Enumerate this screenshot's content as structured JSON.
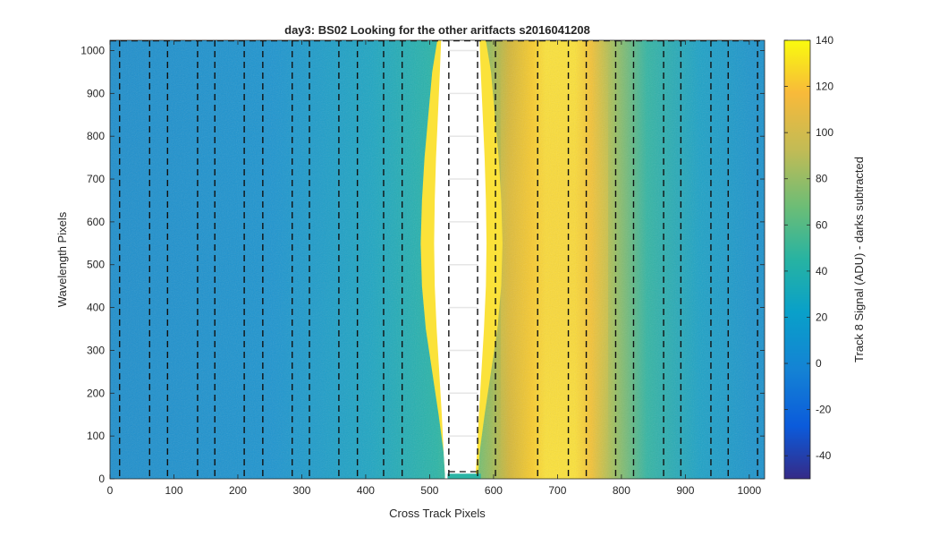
{
  "chart_data": {
    "type": "heatmap",
    "title": "day3: BS02  Looking for the other aritfacts  s2016041208",
    "xlabel": "Cross Track Pixels",
    "ylabel": "Wavelength Pixels",
    "xlim": [
      0,
      1024
    ],
    "ylim": [
      0,
      1024
    ],
    "x_ticks": [
      0,
      100,
      200,
      300,
      400,
      500,
      600,
      700,
      800,
      900,
      1000
    ],
    "y_ticks": [
      0,
      100,
      200,
      300,
      400,
      500,
      600,
      700,
      800,
      900,
      1000
    ],
    "colorbar": {
      "label": "Track 8 Signal (ADU) - darks subtracted",
      "range": [
        -50,
        140
      ],
      "ticks": [
        -40,
        -20,
        0,
        20,
        40,
        60,
        80,
        100,
        120,
        140
      ],
      "colormap": "parula"
    },
    "dashed_column_lines_x": [
      15,
      62,
      90,
      137,
      164,
      210,
      239,
      285,
      312,
      358,
      387,
      428,
      457,
      530,
      575,
      603,
      669,
      717,
      745,
      791,
      819,
      866,
      893,
      940,
      967,
      1013
    ],
    "dashed_box": {
      "x_range": [
        530,
        575
      ],
      "y_range": [
        0,
        1024
      ]
    },
    "background_level": 15,
    "peak_center_x": 552,
    "peak_level": 140,
    "colors": {
      "background": "#1a8fd0",
      "peak": "#f9d22a",
      "dash": "#111111"
    }
  }
}
